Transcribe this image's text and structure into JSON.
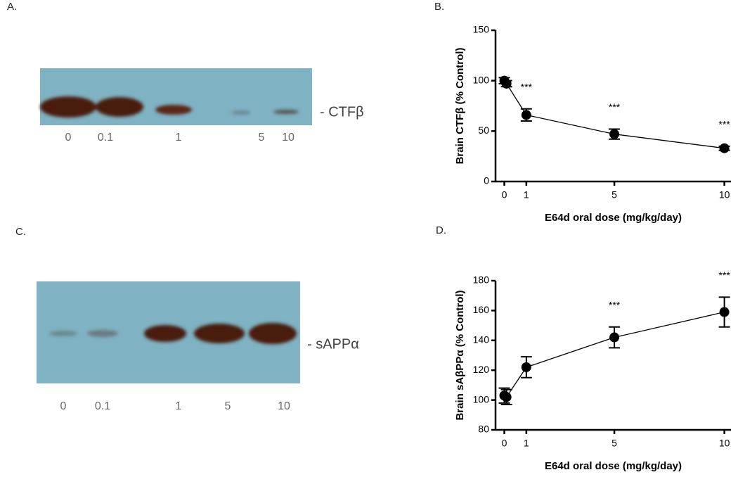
{
  "blots": [
    {
      "panel": "A.",
      "lanes": [
        "0",
        "0.1",
        "1",
        "5",
        "10"
      ],
      "marker": "- CTFβ"
    },
    {
      "panel": "C.",
      "lanes": [
        "0",
        "0.1",
        "1",
        "5",
        "10"
      ],
      "marker": "- sAPPα"
    }
  ],
  "chart_data": [
    {
      "type": "scatter",
      "panel": "B.",
      "x_label": "E64d oral dose (mg/kg/day)",
      "y_label": "Brain CTFβ (% Control)",
      "x": [
        0,
        0.1,
        1,
        5,
        10
      ],
      "values": [
        100,
        97,
        66,
        47,
        33
      ],
      "errors": [
        3,
        3,
        6,
        5,
        2
      ],
      "significance": [
        null,
        null,
        "***",
        "***",
        "***"
      ],
      "xlim": [
        -0.4,
        10.3
      ],
      "xticks": [
        0,
        1,
        5,
        10
      ],
      "ylim": [
        0,
        150
      ],
      "yticks": [
        0,
        50,
        100,
        150
      ],
      "color": "#000000"
    },
    {
      "type": "scatter",
      "panel": "D.",
      "x_label": "E64d oral dose (mg/kg/day)",
      "y_label": "Brain sAβPPα (% Control)",
      "x": [
        0,
        0.1,
        1,
        5,
        10
      ],
      "values": [
        103,
        102,
        122,
        142,
        159
      ],
      "errors": [
        5,
        5,
        7,
        7,
        10
      ],
      "significance": [
        null,
        null,
        null,
        "***",
        "***"
      ],
      "xlim": [
        -0.4,
        10.3
      ],
      "xticks": [
        0,
        1,
        5,
        10
      ],
      "ylim": [
        80,
        180
      ],
      "yticks": [
        80,
        100,
        120,
        140,
        160,
        180
      ],
      "color": "#000000"
    }
  ]
}
